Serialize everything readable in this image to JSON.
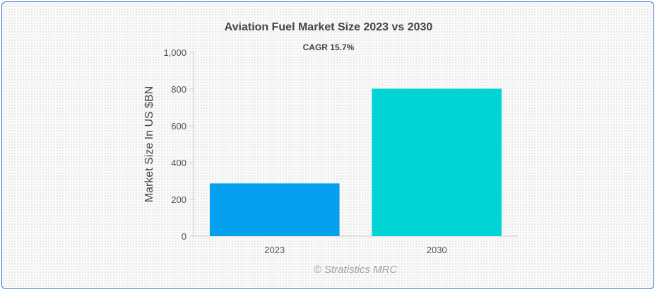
{
  "chart_data": {
    "type": "bar",
    "title": "Aviation Fuel Market Size 2023 vs 2030",
    "subtitle": "CAGR 15.7%",
    "categories": [
      "2023",
      "2030"
    ],
    "values": [
      287,
      802
    ],
    "colors": [
      "#05a0ee",
      "#00d4d4"
    ],
    "xlabel": "",
    "ylabel": "Market Size In US $BN",
    "ylim": [
      0,
      1000
    ],
    "yticks": [
      0,
      200,
      400,
      600,
      800,
      1000
    ],
    "ytick_labels": [
      "0",
      "200",
      "400",
      "600",
      "800",
      "1,000"
    ],
    "grid": false,
    "legend": "none"
  },
  "credit": "© Stratistics MRC"
}
